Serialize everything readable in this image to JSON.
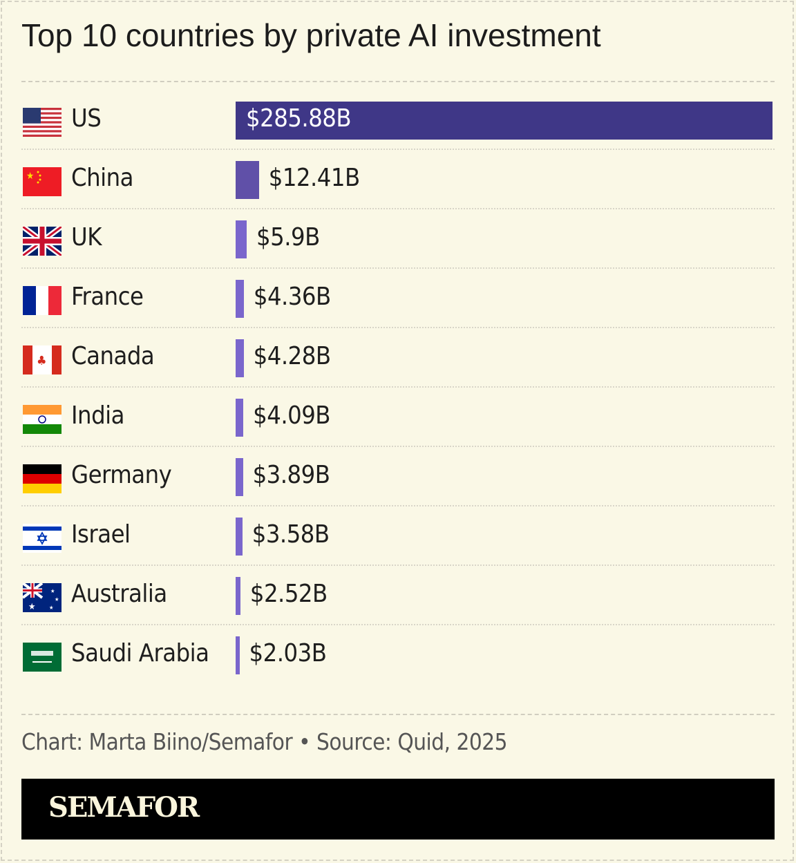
{
  "chart_data": {
    "type": "bar",
    "orientation": "horizontal",
    "title": "Top 10 countries by private AI investment",
    "categories": [
      "US",
      "China",
      "UK",
      "France",
      "Canada",
      "India",
      "Germany",
      "Israel",
      "Australia",
      "Saudi Arabia"
    ],
    "values": [
      285.88,
      12.41,
      5.9,
      4.36,
      4.28,
      4.09,
      3.89,
      3.58,
      2.52,
      2.03
    ],
    "value_labels": [
      "$285.88B",
      "$12.41B",
      "$5.9B",
      "$4.36B",
      "$4.28B",
      "$4.09B",
      "$3.89B",
      "$3.58B",
      "$2.52B",
      "$2.03B"
    ],
    "flags": [
      "us-flag-icon",
      "china-flag-icon",
      "uk-flag-icon",
      "france-flag-icon",
      "canada-flag-icon",
      "india-flag-icon",
      "germany-flag-icon",
      "israel-flag-icon",
      "australia-flag-icon",
      "saudi-arabia-flag-icon"
    ],
    "unit": "billion USD",
    "xlim": [
      0,
      285.88
    ],
    "grid": false,
    "colors": {
      "top": "#3f3787",
      "second": "#6050a8",
      "rest": "#7a66cc"
    }
  },
  "footer": {
    "source": "Chart: Marta Biino/Semafor • Source: Quid, 2025",
    "brand": "SEMAFOR"
  }
}
